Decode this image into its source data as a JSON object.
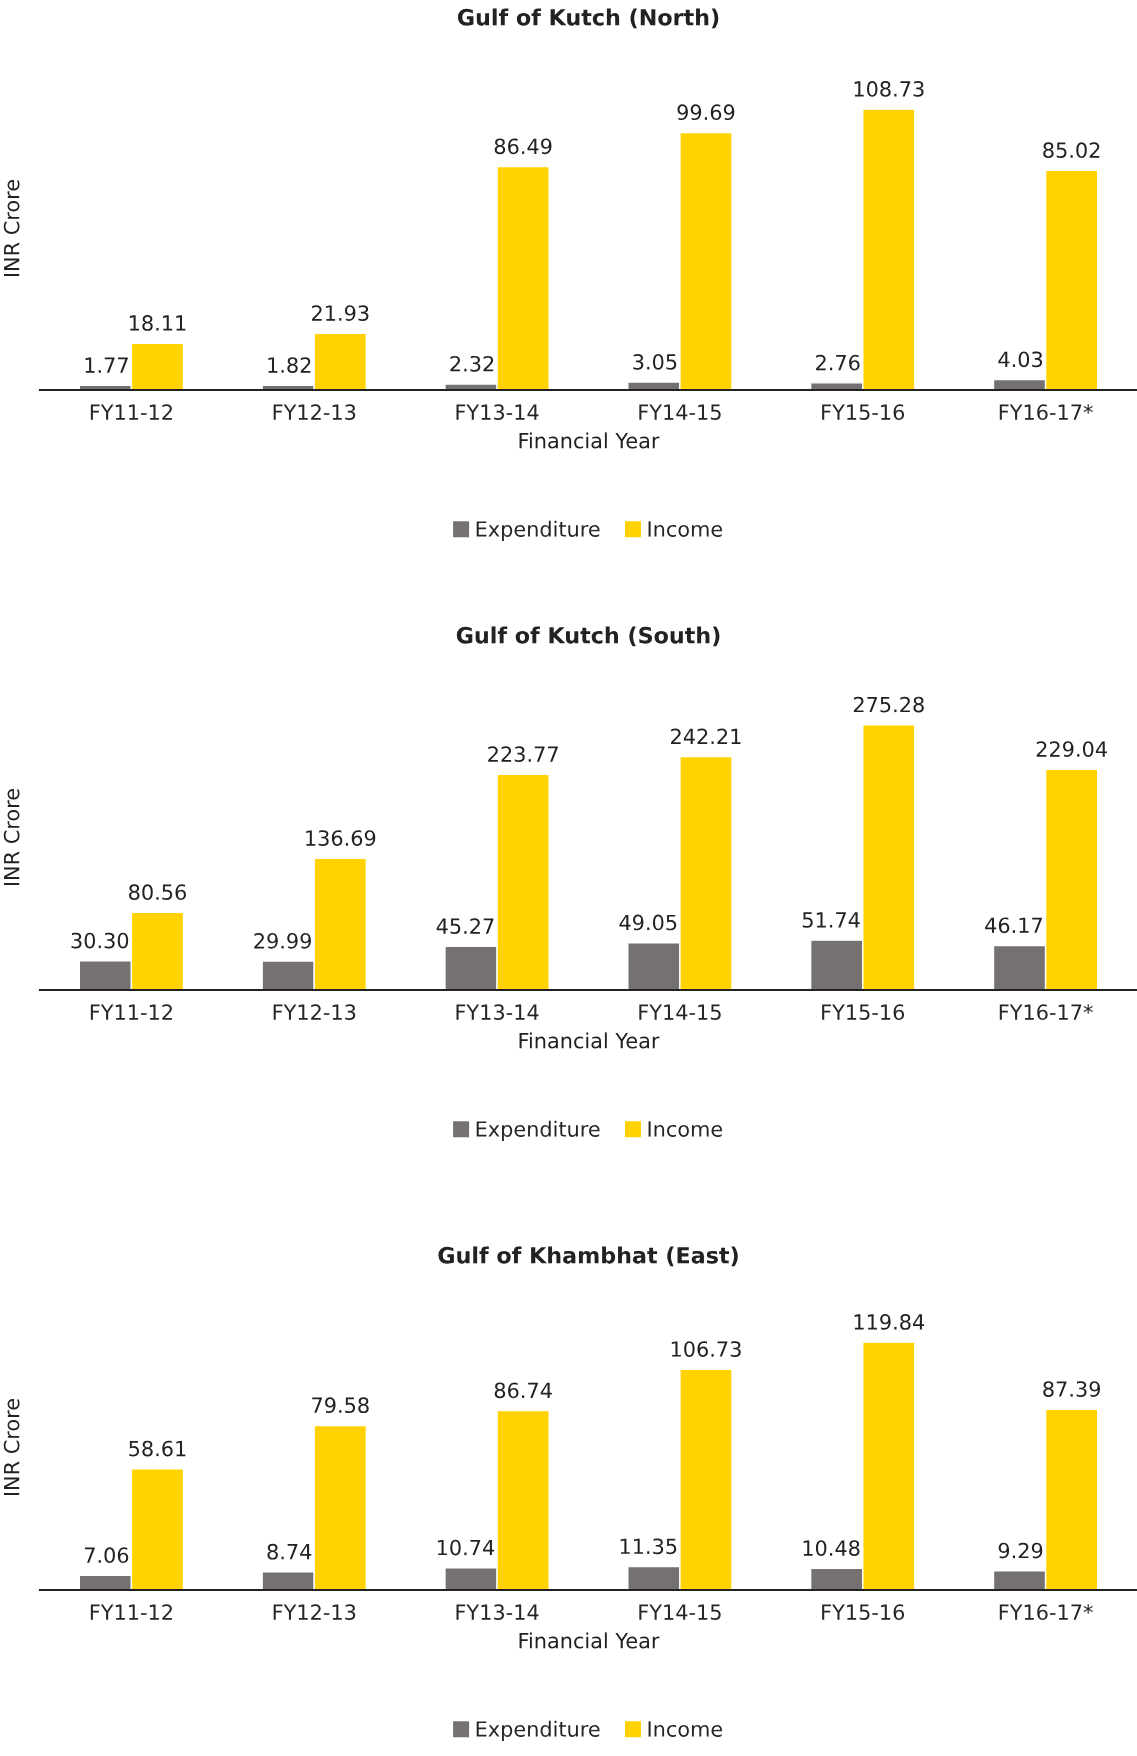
{
  "chart_data": [
    {
      "type": "bar",
      "title": "Gulf of Kutch (North)",
      "xlabel": "Financial Year",
      "ylabel": "INR Crore",
      "categories": [
        "FY11-12",
        "FY12-13",
        "FY13-14",
        "FY14-15",
        "FY15-16",
        "FY16-17*"
      ],
      "series": [
        {
          "name": "Expenditure",
          "color": "#767171",
          "values": [
            1.77,
            1.82,
            2.32,
            3.05,
            2.76,
            4.03
          ],
          "value_labels": [
            "1.77",
            "1.82",
            "2.32",
            "3.05",
            "2.76",
            "4.03"
          ]
        },
        {
          "name": "Income",
          "color": "#ffd200",
          "values": [
            18.11,
            21.93,
            86.49,
            99.69,
            108.73,
            85.02
          ],
          "value_labels": [
            "18.11",
            "21.93",
            "86.49",
            "99.69",
            "108.73",
            "85.02"
          ]
        }
      ],
      "legend": "bottom",
      "grid": false,
      "tick_labels": "x"
    },
    {
      "type": "bar",
      "title": "Gulf of Kutch (South)",
      "xlabel": "Financial Year",
      "ylabel": "INR Crore",
      "categories": [
        "FY11-12",
        "FY12-13",
        "FY13-14",
        "FY14-15",
        "FY15-16",
        "FY16-17*"
      ],
      "series": [
        {
          "name": "Expenditure",
          "color": "#767171",
          "values": [
            30.3,
            29.99,
            45.27,
            49.05,
            51.74,
            46.17
          ],
          "value_labels": [
            "30.30",
            "29.99",
            "45.27",
            "49.05",
            "51.74",
            "46.17"
          ]
        },
        {
          "name": "Income",
          "color": "#ffd200",
          "values": [
            80.56,
            136.69,
            223.77,
            242.21,
            275.28,
            229.04
          ],
          "value_labels": [
            "80.56",
            "136.69",
            "223.77",
            "242.21",
            "275.28",
            "229.04"
          ]
        }
      ],
      "legend": "bottom",
      "grid": false,
      "tick_labels": "x"
    },
    {
      "type": "bar",
      "title": "Gulf of Khambhat (East)",
      "xlabel": "Financial Year",
      "ylabel": "INR Crore",
      "categories": [
        "FY11-12",
        "FY12-13",
        "FY13-14",
        "FY14-15",
        "FY15-16",
        "FY16-17*"
      ],
      "series": [
        {
          "name": "Expenditure",
          "color": "#767171",
          "values": [
            7.06,
            8.74,
            10.74,
            11.35,
            10.48,
            9.29
          ],
          "value_labels": [
            "7.06",
            "8.74",
            "10.74",
            "11.35",
            "10.48",
            "9.29"
          ]
        },
        {
          "name": "Income",
          "color": "#ffd200",
          "values": [
            58.61,
            79.58,
            86.74,
            106.73,
            119.84,
            87.39
          ],
          "value_labels": [
            "58.61",
            "79.58",
            "86.74",
            "106.73",
            "119.84",
            "87.39"
          ]
        }
      ],
      "legend": "bottom",
      "grid": false,
      "tick_labels": "x"
    }
  ]
}
